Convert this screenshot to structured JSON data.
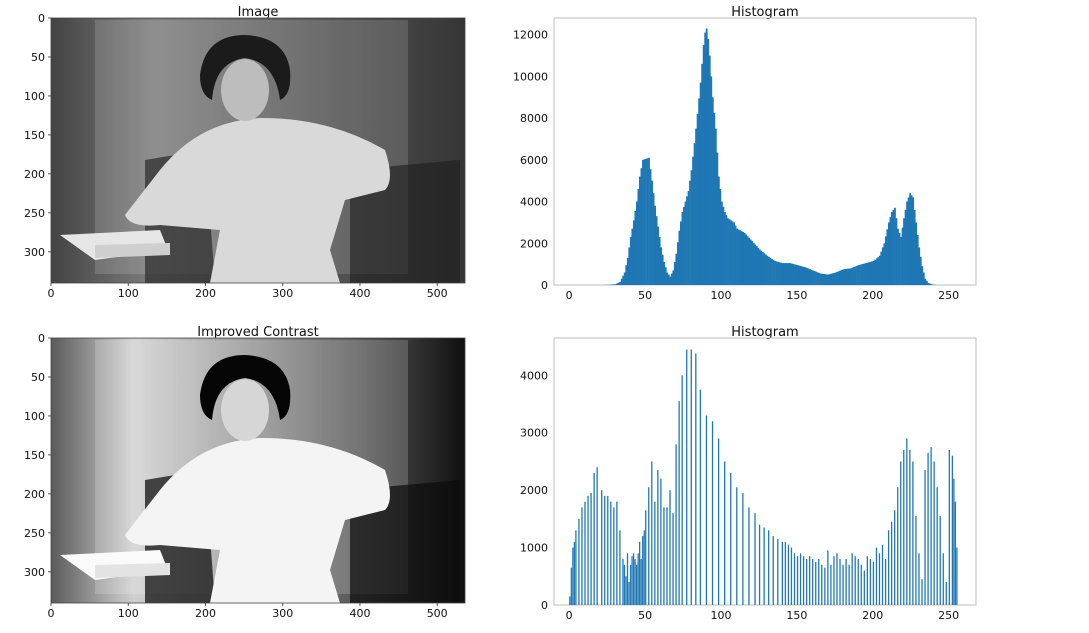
{
  "chart_data": [
    {
      "type": "image",
      "title": "Image",
      "xticks": [
        0,
        100,
        200,
        300,
        400,
        500
      ],
      "yticks": [
        0,
        50,
        100,
        150,
        200,
        250,
        300
      ],
      "xlim": [
        0,
        536
      ],
      "ylim": [
        0,
        340
      ]
    },
    {
      "type": "bar",
      "title": "Histogram",
      "xlim": [
        -10,
        268
      ],
      "ylim": [
        0,
        12800
      ],
      "xticks": [
        0,
        50,
        100,
        150,
        200,
        250
      ],
      "yticks": [
        0,
        2000,
        4000,
        6000,
        8000,
        10000,
        12000
      ],
      "grid": false,
      "color": "#1f77b4",
      "profile": [
        [
          0,
          0
        ],
        [
          20,
          0
        ],
        [
          25,
          10
        ],
        [
          30,
          40
        ],
        [
          33,
          150
        ],
        [
          36,
          600
        ],
        [
          38,
          1300
        ],
        [
          40,
          2300
        ],
        [
          42,
          3100
        ],
        [
          44,
          4000
        ],
        [
          46,
          5200
        ],
        [
          48,
          6000
        ],
        [
          50,
          6050
        ],
        [
          52,
          6100
        ],
        [
          54,
          5000
        ],
        [
          56,
          3800
        ],
        [
          58,
          2800
        ],
        [
          60,
          1800
        ],
        [
          62,
          1100
        ],
        [
          64,
          600
        ],
        [
          66,
          400
        ],
        [
          68,
          700
        ],
        [
          70,
          1500
        ],
        [
          72,
          2600
        ],
        [
          74,
          3500
        ],
        [
          76,
          4000
        ],
        [
          78,
          4500
        ],
        [
          80,
          5500
        ],
        [
          82,
          6800
        ],
        [
          84,
          8200
        ],
        [
          86,
          9700
        ],
        [
          88,
          11500
        ],
        [
          89,
          12100
        ],
        [
          90,
          12300
        ],
        [
          91,
          11800
        ],
        [
          92,
          11000
        ],
        [
          94,
          9000
        ],
        [
          96,
          7500
        ],
        [
          98,
          5200
        ],
        [
          100,
          4000
        ],
        [
          102,
          3500
        ],
        [
          104,
          3200
        ],
        [
          106,
          3100
        ],
        [
          108,
          3000
        ],
        [
          110,
          2700
        ],
        [
          115,
          2500
        ],
        [
          120,
          2100
        ],
        [
          125,
          1700
        ],
        [
          130,
          1400
        ],
        [
          135,
          1150
        ],
        [
          140,
          1050
        ],
        [
          145,
          1050
        ],
        [
          150,
          950
        ],
        [
          155,
          850
        ],
        [
          160,
          700
        ],
        [
          165,
          550
        ],
        [
          170,
          500
        ],
        [
          175,
          600
        ],
        [
          180,
          750
        ],
        [
          185,
          800
        ],
        [
          190,
          950
        ],
        [
          195,
          1050
        ],
        [
          200,
          1150
        ],
        [
          204,
          1400
        ],
        [
          207,
          2000
        ],
        [
          210,
          3000
        ],
        [
          212,
          3500
        ],
        [
          214,
          3700
        ],
        [
          216,
          2700
        ],
        [
          218,
          2300
        ],
        [
          220,
          3200
        ],
        [
          222,
          4000
        ],
        [
          224,
          4400
        ],
        [
          226,
          4200
        ],
        [
          228,
          3000
        ],
        [
          230,
          1800
        ],
        [
          232,
          900
        ],
        [
          234,
          300
        ],
        [
          236,
          100
        ],
        [
          238,
          40
        ],
        [
          240,
          10
        ],
        [
          242,
          0
        ],
        [
          255,
          0
        ]
      ]
    },
    {
      "type": "image",
      "title": "Improved Contrast",
      "xticks": [
        0,
        100,
        200,
        300,
        400,
        500
      ],
      "yticks": [
        0,
        50,
        100,
        150,
        200,
        250,
        300
      ],
      "xlim": [
        0,
        536
      ],
      "ylim": [
        0,
        340
      ]
    },
    {
      "type": "bar",
      "title": "Histogram",
      "xlim": [
        -10,
        268
      ],
      "ylim": [
        0,
        4650
      ],
      "xticks": [
        0,
        50,
        100,
        150,
        200,
        250
      ],
      "yticks": [
        0,
        1000,
        2000,
        3000,
        4000
      ],
      "grid": false,
      "color": "#1f77b4",
      "bins": [
        0,
        1,
        2,
        3,
        4,
        6,
        8,
        10,
        12,
        14,
        16,
        18,
        21,
        23,
        25,
        27,
        29,
        31,
        33,
        35,
        36,
        37,
        38,
        39,
        40,
        41,
        42,
        43,
        44,
        45,
        46,
        47,
        48,
        49,
        50,
        52,
        54,
        56,
        58,
        60,
        62,
        64,
        66,
        68,
        70,
        72,
        74,
        77,
        80,
        83,
        86,
        90,
        94,
        98,
        102,
        106,
        110,
        114,
        118,
        122,
        125,
        128,
        131,
        134,
        137,
        140,
        142,
        144,
        146,
        148,
        150,
        152,
        154,
        156,
        158,
        160,
        162,
        164,
        166,
        168,
        170,
        172,
        174,
        176,
        178,
        180,
        182,
        184,
        186,
        188,
        190,
        192,
        194,
        196,
        198,
        200,
        202,
        204,
        206,
        208,
        210,
        212,
        214,
        216,
        218,
        220,
        222,
        224,
        226,
        228,
        230,
        232,
        234,
        236,
        238,
        240,
        242,
        244,
        246,
        248,
        250,
        252,
        253,
        254,
        255
      ],
      "values": [
        150,
        650,
        1000,
        1100,
        1300,
        1500,
        1700,
        1800,
        1900,
        1950,
        2300,
        2400,
        2000,
        1900,
        1900,
        1800,
        1700,
        1800,
        1300,
        800,
        700,
        500,
        900,
        400,
        700,
        850,
        900,
        800,
        700,
        900,
        1100,
        800,
        1200,
        1300,
        1650,
        2050,
        2500,
        1800,
        2350,
        2200,
        1700,
        1700,
        2000,
        1600,
        2800,
        3550,
        4000,
        4450,
        4450,
        4380,
        3750,
        3300,
        3200,
        2900,
        2500,
        2300,
        2050,
        1950,
        1700,
        1600,
        1400,
        1350,
        1300,
        1200,
        1150,
        1100,
        1100,
        1050,
        1000,
        900,
        850,
        900,
        850,
        800,
        850,
        800,
        750,
        800,
        700,
        650,
        950,
        700,
        850,
        900,
        800,
        700,
        800,
        700,
        900,
        850,
        800,
        700,
        600,
        850,
        800,
        750,
        1000,
        900,
        1050,
        800,
        1300,
        1450,
        1650,
        2050,
        2500,
        2700,
        2900,
        2700,
        2500,
        1550,
        900,
        450,
        2350,
        2650,
        2750,
        2500,
        2050,
        1550,
        900,
        400,
        2700,
        2600,
        2200,
        1800,
        1000
      ]
    }
  ]
}
